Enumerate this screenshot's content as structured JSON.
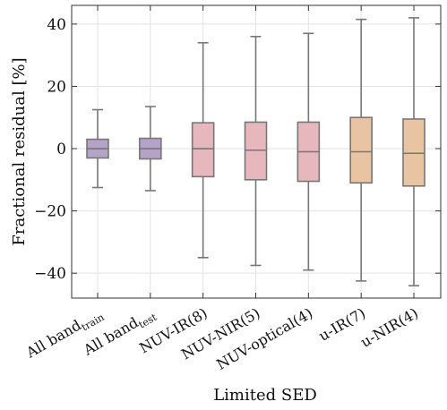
{
  "chart_data": {
    "type": "boxplot",
    "title": "",
    "xlabel": "Limited SED",
    "ylabel": "Fractional residual [%]",
    "ylim": [
      -48,
      46
    ],
    "yticks": [
      -40,
      -20,
      0,
      20,
      40
    ],
    "yticklabels": [
      "−40",
      "−20",
      "0",
      "20",
      "40"
    ],
    "grid": true,
    "categories": [
      {
        "main": "All band",
        "sub": "train"
      },
      {
        "main": "All band",
        "sub": "test"
      },
      {
        "main": "NUV-IR(8)",
        "sub": ""
      },
      {
        "main": "NUV-NIR(5)",
        "sub": ""
      },
      {
        "main": "NUV-optical(4)",
        "sub": ""
      },
      {
        "main": "u-IR(7)",
        "sub": ""
      },
      {
        "main": "u-NIR(4)",
        "sub": ""
      }
    ],
    "boxes": [
      {
        "whisker_low": -12.5,
        "q1": -3,
        "median": 0,
        "q3": 3,
        "whisker_high": 12.5,
        "color": "#b4a3c6"
      },
      {
        "whisker_low": -13.5,
        "q1": -3.3,
        "median": 0,
        "q3": 3.3,
        "whisker_high": 13.5,
        "color": "#b4a3c6"
      },
      {
        "whisker_low": -35,
        "q1": -9,
        "median": 0,
        "q3": 8.3,
        "whisker_high": 34,
        "color": "#e6b7bd"
      },
      {
        "whisker_low": -37.5,
        "q1": -10,
        "median": -0.5,
        "q3": 8.5,
        "whisker_high": 36,
        "color": "#e6b7bd"
      },
      {
        "whisker_low": -39,
        "q1": -10.5,
        "median": -1,
        "q3": 8.5,
        "whisker_high": 37,
        "color": "#e6b7bd"
      },
      {
        "whisker_low": -42.5,
        "q1": -11,
        "median": -1,
        "q3": 10,
        "whisker_high": 41.5,
        "color": "#e8c4a3"
      },
      {
        "whisker_low": -44,
        "q1": -12,
        "median": -1.5,
        "q3": 9.5,
        "whisker_high": 42,
        "color": "#e8c4a3"
      }
    ]
  }
}
